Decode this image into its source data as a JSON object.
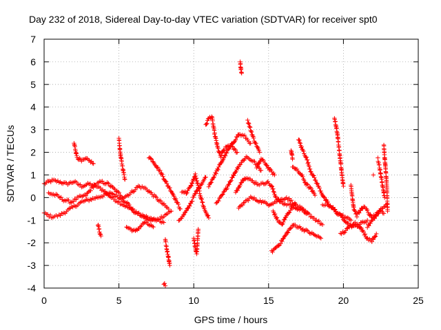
{
  "chart_data": {
    "type": "scatter",
    "title": "Day 232 of 2018, Sidereal Day-to-day VTEC variation (SDTVAR) for receiver spt0",
    "xlabel": "GPS time / hours",
    "ylabel": "SDTVAR / TECUs",
    "xlim": [
      0,
      25
    ],
    "ylim": [
      -4,
      7
    ],
    "xticks": [
      0,
      5,
      10,
      15,
      20,
      25
    ],
    "yticks": [
      -4,
      -3,
      -2,
      -1,
      0,
      1,
      2,
      3,
      4,
      5,
      6,
      7
    ],
    "grid": true,
    "marker": "+",
    "color": "#ff0000",
    "series": [
      {
        "name": "SDTVAR",
        "tracks": [
          {
            "x": [
              0.0,
              0.3,
              0.6,
              1.0,
              1.5,
              2.0,
              2.5,
              3.0,
              3.5,
              4.0,
              4.5,
              5.0,
              5.5,
              6.0,
              6.5,
              7.0,
              7.5,
              8.0
            ],
            "y": [
              0.6,
              0.7,
              0.75,
              0.7,
              0.6,
              0.7,
              0.5,
              0.6,
              0.5,
              0.3,
              0.0,
              -0.2,
              -0.4,
              -0.6,
              -0.8,
              -0.9,
              -1.0,
              -1.1
            ]
          },
          {
            "x": [
              0.0,
              0.5,
              1.0,
              1.5,
              2.0,
              2.5,
              3.0,
              3.5,
              4.0,
              4.5,
              5.0,
              5.5,
              6.0,
              6.5,
              7.0,
              7.5,
              8.0,
              8.5
            ],
            "y": [
              -0.7,
              -0.85,
              -0.8,
              -0.6,
              -0.4,
              -0.2,
              -0.1,
              0.0,
              0.1,
              0.2,
              0.0,
              -0.2,
              -0.6,
              -0.8,
              -1.0,
              -1.0,
              -0.8,
              -0.6
            ]
          },
          {
            "x": [
              0.3,
              0.8,
              1.3,
              1.8,
              2.3,
              2.8,
              3.3,
              3.8,
              4.3,
              4.8,
              5.3,
              5.8,
              6.3,
              6.8,
              7.3,
              7.8,
              8.3
            ],
            "y": [
              0.2,
              0.1,
              -0.1,
              -0.2,
              0.0,
              0.1,
              0.5,
              0.7,
              0.6,
              0.3,
              0.0,
              0.2,
              0.5,
              0.4,
              0.1,
              -0.2,
              -0.5
            ]
          },
          {
            "x": [
              2.0,
              2.2,
              2.5,
              2.8,
              3.1,
              3.3
            ],
            "y": [
              2.4,
              1.8,
              1.6,
              1.7,
              1.6,
              1.5
            ]
          },
          {
            "x": [
              5.0,
              5.1,
              5.2,
              5.4
            ],
            "y": [
              2.6,
              1.9,
              1.5,
              0.8
            ]
          },
          {
            "x": [
              7.0,
              7.3,
              7.6,
              7.9,
              8.2,
              8.5,
              8.8,
              9.1
            ],
            "y": [
              1.8,
              1.6,
              1.3,
              1.0,
              0.6,
              0.3,
              -0.1,
              -0.5
            ]
          },
          {
            "x": [
              3.6,
              3.7,
              3.8
            ],
            "y": [
              -1.2,
              -1.5,
              -1.7
            ]
          },
          {
            "x": [
              5.5,
              5.8,
              6.1,
              6.4,
              6.7,
              7.0,
              7.3
            ],
            "y": [
              -1.3,
              -1.4,
              -1.5,
              -1.3,
              -1.1,
              -1.2,
              -1.3
            ]
          },
          {
            "x": [
              8.1,
              8.2,
              8.3,
              8.4
            ],
            "y": [
              -1.9,
              -2.3,
              -2.6,
              -3.0
            ]
          },
          {
            "x": [
              8.0,
              8.1
            ],
            "y": [
              -3.8,
              -3.9
            ]
          },
          {
            "x": [
              9.0,
              9.3,
              9.6,
              9.9,
              10.2,
              10.5,
              10.8
            ],
            "y": [
              -1.0,
              -0.8,
              -0.5,
              -0.1,
              0.3,
              0.6,
              0.9
            ]
          },
          {
            "x": [
              10.0,
              10.1,
              10.2,
              10.3
            ],
            "y": [
              -1.8,
              -2.2,
              -2.5,
              -1.4
            ]
          },
          {
            "x": [
              9.2,
              9.5,
              9.8,
              10.1,
              10.4,
              10.7,
              11.0
            ],
            "y": [
              0.3,
              0.2,
              0.5,
              1.0,
              0.2,
              -0.5,
              -0.9
            ]
          },
          {
            "x": [
              10.8,
              11.0,
              11.2,
              11.4,
              11.6,
              11.8,
              12.0,
              12.3,
              12.6,
              12.9
            ],
            "y": [
              3.2,
              3.5,
              3.6,
              2.8,
              2.2,
              1.8,
              2.1,
              2.3,
              2.2,
              2.0
            ]
          },
          {
            "x": [
              11.0,
              11.4,
              11.8,
              12.2,
              12.6,
              13.0,
              13.4,
              13.8
            ],
            "y": [
              0.5,
              1.0,
              1.5,
              2.0,
              2.4,
              2.8,
              2.7,
              2.4
            ]
          },
          {
            "x": [
              11.5,
              12.0,
              12.5,
              13.0,
              13.5,
              14.0,
              14.5
            ],
            "y": [
              -0.3,
              0.2,
              0.8,
              1.4,
              1.8,
              1.6,
              1.2
            ]
          },
          {
            "x": [
              13.1,
              13.15,
              13.2
            ],
            "y": [
              6.0,
              5.7,
              5.5
            ]
          },
          {
            "x": [
              13.6,
              13.8,
              14.0,
              14.2,
              14.4
            ],
            "y": [
              3.4,
              3.0,
              2.6,
              2.3,
              2.0
            ]
          },
          {
            "x": [
              12.8,
              13.1,
              13.4,
              13.7,
              14.0,
              14.3,
              14.6,
              14.9,
              15.2,
              15.5,
              15.8,
              16.1,
              16.4,
              16.7,
              17.0,
              17.3,
              17.6
            ],
            "y": [
              0.2,
              0.6,
              0.9,
              0.8,
              0.7,
              0.6,
              0.6,
              0.7,
              0.5,
              0.0,
              -0.2,
              -0.3,
              -0.3,
              -0.4,
              -0.5,
              -0.6,
              -0.7
            ]
          },
          {
            "x": [
              13.0,
              13.4,
              13.8,
              14.2,
              14.6,
              15.0,
              15.4,
              15.8,
              16.2,
              16.6,
              17.0,
              17.4,
              17.8,
              18.2,
              18.6
            ],
            "y": [
              -0.5,
              -0.2,
              0.0,
              -0.1,
              -0.2,
              -0.3,
              -0.2,
              -0.1,
              0.0,
              -0.2,
              -0.4,
              -0.6,
              -0.8,
              -1.0,
              -1.2
            ]
          },
          {
            "x": [
              14.2,
              14.5,
              14.8,
              15.1,
              15.4
            ],
            "y": [
              1.3,
              1.7,
              1.5,
              1.2,
              1.0
            ]
          },
          {
            "x": [
              15.2,
              15.5,
              15.8,
              16.1,
              16.4,
              16.7,
              17.0,
              17.3,
              17.6,
              17.9,
              18.2,
              18.5
            ],
            "y": [
              -2.4,
              -2.2,
              -2.0,
              -1.7,
              -1.4,
              -1.2,
              -1.3,
              -1.4,
              -1.5,
              -1.6,
              -1.7,
              -1.8
            ]
          },
          {
            "x": [
              15.3,
              15.6,
              15.9,
              16.2,
              16.5,
              16.8
            ],
            "y": [
              -0.6,
              -1.0,
              -1.2,
              -0.8,
              -0.5,
              -0.3
            ]
          },
          {
            "x": [
              16.5,
              16.6
            ],
            "y": [
              2.1,
              1.7
            ]
          },
          {
            "x": [
              17.0,
              17.2,
              17.5,
              17.8,
              18.1,
              18.4,
              18.7,
              19.0,
              19.3,
              19.6,
              19.9,
              20.2,
              20.5
            ],
            "y": [
              2.6,
              2.2,
              1.8,
              1.2,
              0.8,
              0.4,
              0.0,
              -0.3,
              -0.5,
              -0.7,
              -0.8,
              -0.9,
              -1.0
            ]
          },
          {
            "x": [
              16.6,
              16.9,
              17.2,
              17.5,
              17.8,
              18.1
            ],
            "y": [
              1.4,
              1.2,
              1.0,
              0.6,
              0.4,
              0.1
            ]
          },
          {
            "x": [
              18.6,
              18.9,
              19.2,
              19.5,
              19.8,
              20.1,
              20.4,
              20.7,
              21.0,
              21.3,
              21.6
            ],
            "y": [
              -0.3,
              -0.3,
              -0.4,
              -0.6,
              -0.8,
              -1.0,
              -1.2,
              -1.3,
              -1.2,
              -1.1,
              -1.0
            ]
          },
          {
            "x": [
              19.4,
              19.5,
              19.6,
              19.7,
              19.8,
              19.9,
              20.0
            ],
            "y": [
              3.5,
              3.2,
              2.8,
              2.2,
              1.6,
              1.0,
              0.5
            ]
          },
          {
            "x": [
              19.8,
              20.1,
              20.4,
              20.7,
              21.0,
              21.3,
              21.6,
              21.9,
              22.2
            ],
            "y": [
              -1.6,
              -1.5,
              -1.3,
              -1.1,
              -1.2,
              -1.5,
              -1.8,
              -1.9,
              -1.6
            ]
          },
          {
            "x": [
              20.5,
              20.7,
              20.9,
              21.1,
              21.3,
              21.5,
              21.7,
              21.9,
              22.1,
              22.3,
              22.5,
              22.7
            ],
            "y": [
              0.5,
              -0.5,
              -0.8,
              -0.6,
              -0.4,
              -0.5,
              -0.7,
              -0.9,
              -0.8,
              -0.7,
              -0.6,
              -0.7
            ]
          },
          {
            "x": [
              21.6,
              21.9,
              22.2,
              22.5,
              22.7,
              22.9
            ],
            "y": [
              -1.3,
              -1.0,
              -0.8,
              -0.5,
              -0.4,
              -0.3
            ]
          },
          {
            "x": [
              22.3,
              22.45,
              22.6,
              22.75
            ],
            "y": [
              1.7,
              1.2,
              0.6,
              0.0
            ]
          },
          {
            "x": [
              22.7,
              22.75,
              22.8,
              22.85,
              22.9,
              22.95
            ],
            "y": [
              2.3,
              1.8,
              1.4,
              1.0,
              0.5,
              -0.6
            ]
          },
          {
            "x": [
              22.0
            ],
            "y": [
              1.0
            ]
          }
        ]
      }
    ]
  }
}
